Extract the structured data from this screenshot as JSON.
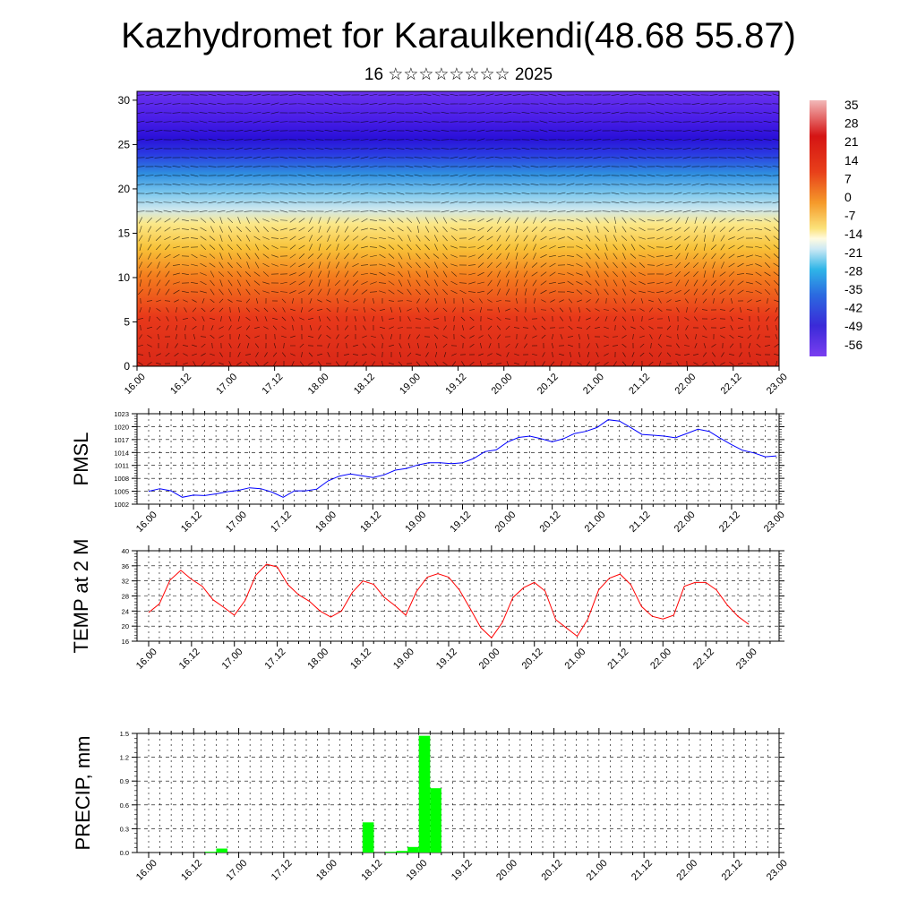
{
  "page": {
    "title": "Kazhydromet for Karaulkendi(48.68 55.87)",
    "subtitle": "16 ☆☆☆☆☆☆☆☆ 2025"
  },
  "x_ticks": [
    "16.00",
    "16.12",
    "17.00",
    "17.12",
    "18.00",
    "18.12",
    "19.00",
    "19.12",
    "20.00",
    "20.12",
    "21.00",
    "21.12",
    "22.00",
    "22.12",
    "23.00"
  ],
  "colors": {
    "pmsl_line": "#0000ff",
    "temp_line": "#ff0000",
    "precip_bar": "#00ff00"
  },
  "chart_data": [
    {
      "type": "heatmap",
      "panel": "cross-section",
      "x": [
        0,
        14
      ],
      "ylim": [
        0,
        31
      ],
      "y_ticks": [
        0,
        5,
        10,
        15,
        20,
        25,
        30
      ],
      "colorbar_labels": [
        "35",
        "28",
        "21",
        "14",
        "7",
        "0",
        "-7",
        "-14",
        "-21",
        "-28",
        "-35",
        "-42",
        "-49",
        "-56"
      ],
      "colorbar_range": [
        -60,
        38
      ],
      "wind_barbs": true,
      "legend_position": "right"
    },
    {
      "type": "line",
      "panel": "pmsl",
      "ylabel": "PMSL",
      "ylim": [
        1002,
        1023
      ],
      "y_ticks": [
        "1002",
        "1005",
        "1008",
        "1011",
        "1014",
        "1017",
        "1020",
        "1023"
      ],
      "grid": true,
      "values": [
        1005.0,
        1005.6,
        1005.1,
        1003.6,
        1004.1,
        1004.0,
        1004.4,
        1004.9,
        1005.2,
        1005.8,
        1005.6,
        1004.8,
        1003.6,
        1005.1,
        1005.1,
        1005.5,
        1007.4,
        1008.5,
        1009.0,
        1008.6,
        1008.2,
        1008.8,
        1009.9,
        1010.3,
        1011.1,
        1011.6,
        1011.6,
        1011.4,
        1011.6,
        1012.6,
        1014.2,
        1014.6,
        1016.4,
        1017.5,
        1017.8,
        1017.2,
        1016.5,
        1017.2,
        1018.4,
        1018.9,
        1019.8,
        1021.6,
        1021.3,
        1019.8,
        1018.2,
        1018.0,
        1017.8,
        1017.4,
        1018.4,
        1019.4,
        1018.9,
        1017.3,
        1015.8,
        1014.5,
        1013.9,
        1013.0,
        1013.2
      ]
    },
    {
      "type": "line",
      "panel": "temp2m",
      "ylabel": "TEMP at 2 M",
      "ylim": [
        16,
        40
      ],
      "y_ticks": [
        "16",
        "20",
        "24",
        "28",
        "32",
        "36",
        "40"
      ],
      "grid": true,
      "values": [
        23.6,
        25.9,
        32.2,
        34.8,
        32.4,
        30.6,
        27.0,
        25.0,
        22.9,
        26.8,
        33.5,
        36.4,
        35.7,
        31.0,
        28.3,
        26.6,
        24.0,
        22.4,
        24.0,
        28.9,
        32.0,
        31.1,
        27.6,
        25.4,
        22.9,
        29.2,
        33.0,
        33.9,
        33.0,
        29.6,
        24.7,
        19.6,
        16.9,
        20.9,
        27.6,
        30.2,
        31.6,
        29.3,
        21.7,
        19.5,
        17.3,
        21.9,
        29.6,
        32.7,
        33.8,
        31.0,
        25.2,
        22.6,
        21.9,
        22.9,
        30.6,
        31.6,
        31.6,
        29.6,
        25.6,
        22.6,
        20.5
      ]
    },
    {
      "type": "bar",
      "panel": "precip",
      "ylabel": "PRECIP, mm",
      "ylim": [
        0,
        1.5
      ],
      "y_ticks": [
        "0.0",
        "0.3",
        "0.6",
        "0.9",
        "1.2",
        "1.5"
      ],
      "grid": true,
      "bin_hours": 3,
      "values": [
        0,
        0,
        0,
        0,
        0,
        0.01,
        0.05,
        0,
        0,
        0,
        0,
        0,
        0,
        0,
        0,
        0,
        0,
        0,
        0,
        0.38,
        0,
        0.01,
        0.02,
        0.07,
        1.47,
        0.81,
        0,
        0,
        0,
        0,
        0,
        0,
        0,
        0,
        0,
        0,
        0,
        0,
        0,
        0,
        0,
        0,
        0,
        0,
        0,
        0,
        0,
        0,
        0,
        0,
        0,
        0,
        0,
        0,
        0,
        0
      ]
    }
  ]
}
